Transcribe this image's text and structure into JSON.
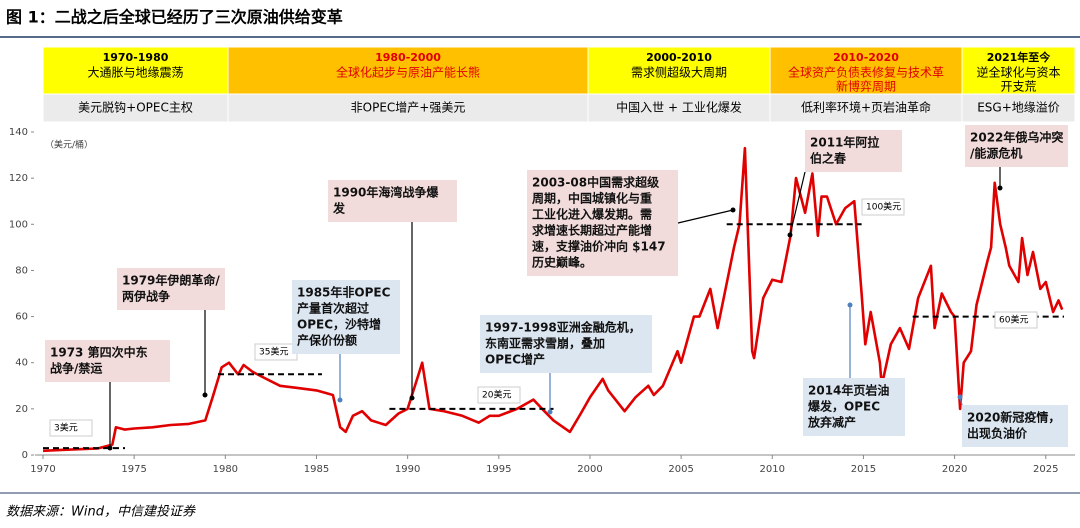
{
  "chart_data": {
    "type": "line",
    "title": "图 1：二战之后全球已经历了三次原油供给变革",
    "source": "数据来源：Wind，中信建投证券",
    "y_axis_label": "（美元/桶）",
    "color": "#e00000",
    "periods": [
      {
        "years": "1970-1980",
        "theme": [
          "大通胀与地缘震荡"
        ],
        "driver": "美元脱钩+OPEC主权",
        "fill": "#ffff00",
        "text_color": "#000000"
      },
      {
        "years": "1980-2000",
        "theme": [
          "全球化起步与原油产能长熊"
        ],
        "driver": "非OPEC增产+强美元",
        "fill": "#ffc000",
        "text_color": "#e00000"
      },
      {
        "years": "2000-2010",
        "theme": [
          "需求侧超级大周期"
        ],
        "driver": "中国入世 + 工业化爆发",
        "fill": "#ffff00",
        "text_color": "#000000"
      },
      {
        "years": "2010-2020",
        "theme": [
          "全球资产负债表修复与技术革",
          "新博弈周期"
        ],
        "driver": "低利率环境+页岩油革命",
        "fill": "#ffc000",
        "text_color": "#e00000"
      },
      {
        "years": "2021年至今",
        "theme": [
          "逆全球化与资本",
          "开支荒"
        ],
        "driver": "ESG+地缘溢价",
        "fill": "#ffff00",
        "text_color": "#000000"
      }
    ],
    "x": [
      1970,
      1971,
      1972,
      1973,
      1973.8,
      1974,
      1974.5,
      1975,
      1976,
      1977,
      1978,
      1978.9,
      1979.3,
      1979.8,
      1980.2,
      1980.7,
      1981,
      1981.5,
      1982,
      1983,
      1984,
      1985,
      1985.9,
      1986.3,
      1986.6,
      1987,
      1987.5,
      1988,
      1988.8,
      1989.5,
      1990,
      1990.6,
      1990.8,
      1991.2,
      1992,
      1993,
      1993.9,
      1994.5,
      1995,
      1996,
      1996.9,
      1997.5,
      1998,
      1998.9,
      1999.5,
      2000,
      2000.7,
      2001,
      2001.9,
      2002.5,
      2003.2,
      2003.5,
      2004,
      2004.8,
      2005,
      2005.7,
      2006,
      2006.6,
      2007,
      2007.9,
      2008.2,
      2008.5,
      2008.9,
      2009,
      2009.5,
      2010,
      2010.5,
      2011,
      2011.3,
      2011.8,
      2012.2,
      2012.5,
      2012.7,
      2013,
      2013.5,
      2014,
      2014.5,
      2014.9,
      2015.1,
      2015.4,
      2015.9,
      2016,
      2016.5,
      2017,
      2017.5,
      2018,
      2018.7,
      2018.9,
      2019.3,
      2019.8,
      2020,
      2020.3,
      2020.5,
      2020.9,
      2021.2,
      2021.8,
      2022,
      2022.2,
      2022.5,
      2022.8,
      2023,
      2023.5,
      2023.7,
      2024,
      2024.3,
      2024.7,
      2025,
      2025.4,
      2025.7,
      2025.9
    ],
    "values": [
      1.8,
      2.2,
      2.5,
      2.8,
      4.5,
      12,
      11,
      11.5,
      12,
      13,
      13.5,
      15,
      25,
      38,
      40,
      35,
      39,
      36,
      34,
      30,
      29,
      28,
      26,
      12,
      10,
      17,
      19,
      15,
      13,
      18,
      20,
      35,
      40,
      20,
      19,
      17,
      14,
      17,
      17,
      20,
      24,
      19,
      15,
      10,
      18,
      25,
      33,
      28,
      19,
      25,
      30,
      26,
      30,
      45,
      40,
      60,
      60,
      72,
      55,
      90,
      100,
      133,
      45,
      42,
      68,
      76,
      75,
      95,
      120,
      105,
      122,
      95,
      112,
      112,
      100,
      107,
      110,
      70,
      48,
      62,
      40,
      30,
      48,
      55,
      46,
      68,
      82,
      55,
      70,
      62,
      60,
      20,
      40,
      45,
      65,
      84,
      90,
      118,
      100,
      90,
      82,
      75,
      94,
      78,
      88,
      72,
      75,
      62,
      67,
      63
    ],
    "xlim": [
      1970,
      2026
    ],
    "ylim": [
      0,
      140
    ],
    "xticks": [
      1970,
      1975,
      1980,
      1985,
      1990,
      1995,
      2000,
      2005,
      2010,
      2015,
      2020,
      2025
    ],
    "yticks": [
      0,
      20,
      40,
      60,
      80,
      100,
      120,
      140
    ],
    "ref_lines": [
      {
        "value": 3,
        "label": "3美元"
      },
      {
        "value": 35,
        "label": "35美元"
      },
      {
        "value": 20,
        "label": "20美元"
      },
      {
        "value": 100,
        "label": "100美元"
      },
      {
        "value": 60,
        "label": "60美元"
      }
    ],
    "annotations": [
      [
        "1973 第四次中东",
        "战争/禁运"
      ],
      [
        "1979年伊朗革命/",
        "两伊战争"
      ],
      [
        "1985年非OPEC",
        "产量首次超过",
        "OPEC，沙特增",
        "产保价份额"
      ],
      [
        "1990年海湾战争爆",
        "发"
      ],
      [
        "1997-1998亚洲金融危机，",
        "东南亚需求雪崩，叠加",
        "OPEC增产"
      ],
      [
        "2003-08中国需求超级",
        "周期，中国城镇化与重",
        "工业化进入爆发期。需",
        "求增速长期超过产能增",
        "速，支撑油价冲向 $147",
        "历史巅峰。"
      ],
      [
        "2011年阿拉",
        "伯之春"
      ],
      [
        "2014年页岩油",
        "爆发，OPEC",
        "放弃减产"
      ],
      [
        "2022年俄乌冲突",
        "/能源危机"
      ],
      [
        "2020新冠疫情，",
        "出现负油价"
      ]
    ]
  }
}
